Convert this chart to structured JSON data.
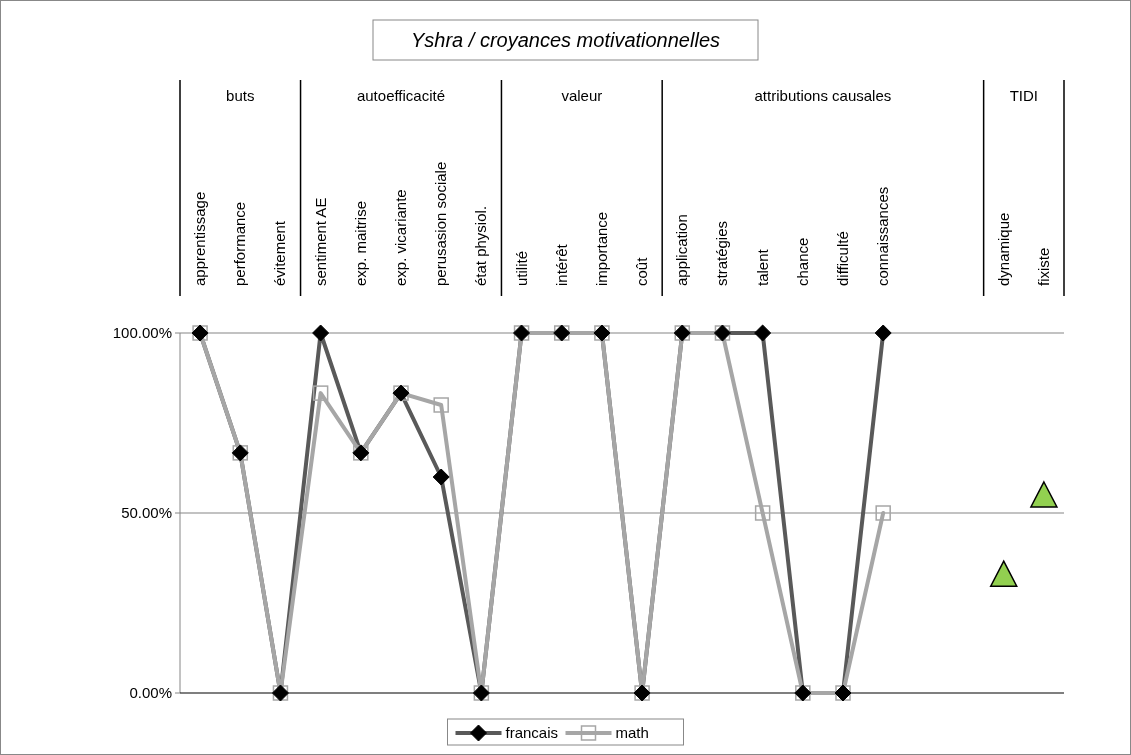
{
  "chart_data": {
    "type": "line",
    "title": "Yshra / croyances motivationnelles",
    "categories": [
      "apprentissage",
      "performance",
      "évitement",
      "sentiment AE",
      "exp. maitrise",
      "exp. vicariante",
      "perusasion sociale",
      "état physiol.",
      "utilité",
      "intérêt",
      "importance",
      "coût",
      "application",
      "stratégies",
      "talent",
      "chance",
      "difficulté",
      "connaissances",
      null,
      null,
      "dynamique",
      "fixiste"
    ],
    "annotations": [
      "buts",
      "autoefficacité",
      "valeur",
      "attributions causales",
      "TIDI"
    ],
    "series": [
      {
        "name": "francais",
        "color": "#595959",
        "marker": "diamond",
        "values": [
          100,
          66.7,
          0,
          100,
          66.7,
          83.3,
          60,
          0,
          100,
          100,
          100,
          0,
          100,
          100,
          100,
          0,
          0,
          100,
          null,
          null,
          null,
          null
        ]
      },
      {
        "name": "math",
        "color": "#a6a6a6",
        "marker": "square",
        "values": [
          100,
          66.7,
          0,
          83.3,
          66.7,
          83.3,
          80,
          0,
          100,
          100,
          100,
          0,
          100,
          100,
          50,
          0,
          0,
          50,
          null,
          null,
          null,
          null
        ]
      },
      {
        "type": "scatter",
        "color": "#92d050",
        "marker": "triangle",
        "values": [
          null,
          null,
          null,
          null,
          null,
          null,
          null,
          null,
          null,
          null,
          null,
          null,
          null,
          null,
          null,
          null,
          null,
          null,
          null,
          null,
          33,
          55
        ]
      }
    ],
    "ylim": [
      0,
      100
    ],
    "yticks": [
      {
        "value": 0,
        "label": "0.00%"
      },
      {
        "value": 50,
        "label": "50.00%"
      },
      {
        "value": 100,
        "label": "100.00%"
      }
    ],
    "grid": "y",
    "legend": "bottom"
  }
}
